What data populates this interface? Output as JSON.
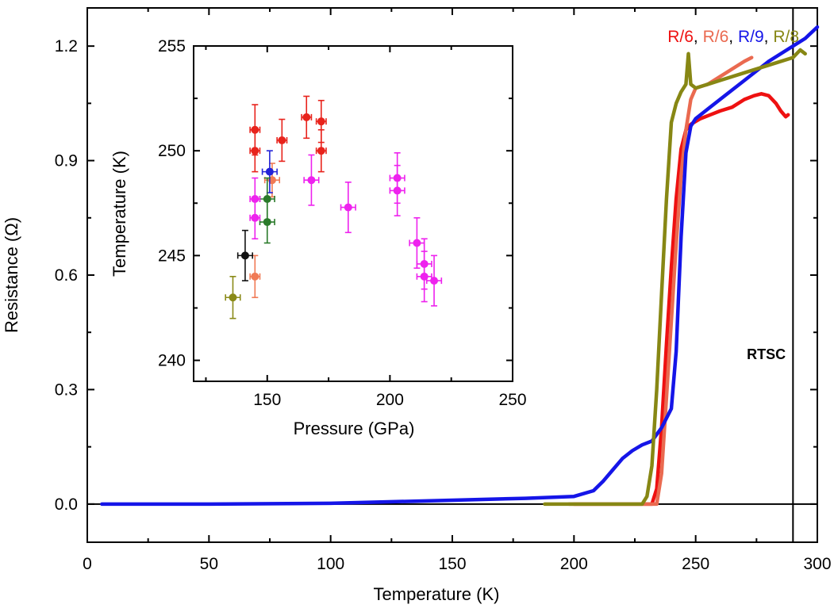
{
  "chart_data": [
    {
      "type": "line",
      "xlabel": "Temperature (K)",
      "ylabel": "Resistance (Ω)",
      "xlim": [
        0,
        300
      ],
      "ylim": [
        -0.1,
        1.3
      ],
      "xticks": [
        "0",
        "50",
        "100",
        "150",
        "200",
        "250",
        "300"
      ],
      "yticks": [
        "0.0",
        "0.3",
        "0.6",
        "0.9",
        "1.2"
      ],
      "grid": false,
      "legend_position": "top-right",
      "legend_entries": [
        "R/6",
        "R/6",
        "R/9",
        "R/8"
      ],
      "annotations": [
        {
          "text": "RTSC",
          "x": 279,
          "y": 0.38
        }
      ],
      "reference_lines": {
        "horizontal_y": 0.0,
        "vertical_x": 290
      },
      "series": [
        {
          "name": "R/6",
          "color": "#ee1111",
          "x": [
            200,
            232,
            234,
            236,
            238,
            240,
            242,
            244,
            246,
            248,
            252,
            256,
            260,
            265,
            270,
            274,
            277,
            280,
            283,
            285,
            287,
            288
          ],
          "y": [
            0.0,
            0.0,
            0.04,
            0.2,
            0.42,
            0.62,
            0.8,
            0.93,
            0.98,
            0.995,
            1.01,
            1.02,
            1.03,
            1.04,
            1.06,
            1.07,
            1.075,
            1.07,
            1.05,
            1.03,
            1.015,
            1.02
          ]
        },
        {
          "name": "R/6",
          "color": "#ea6a50",
          "x": [
            198,
            234,
            236,
            238,
            240,
            242,
            244,
            246,
            248,
            250,
            255,
            260,
            265,
            270,
            273
          ],
          "y": [
            0.0,
            0.0,
            0.08,
            0.28,
            0.48,
            0.68,
            0.86,
            0.98,
            1.06,
            1.09,
            1.1,
            1.12,
            1.14,
            1.16,
            1.17
          ]
        },
        {
          "name": "R/9",
          "color": "#1515e8",
          "x": [
            6,
            50,
            100,
            150,
            180,
            200,
            208,
            212,
            216,
            220,
            224,
            228,
            232,
            236,
            240,
            242,
            244,
            246,
            248,
            250,
            260,
            270,
            280,
            290,
            295,
            300
          ],
          "y": [
            0.0,
            0.0,
            0.002,
            0.01,
            0.015,
            0.02,
            0.035,
            0.06,
            0.09,
            0.12,
            0.14,
            0.155,
            0.165,
            0.2,
            0.25,
            0.4,
            0.7,
            0.92,
            0.99,
            1.01,
            1.06,
            1.11,
            1.16,
            1.2,
            1.22,
            1.25
          ]
        },
        {
          "name": "R/8",
          "color": "#878714",
          "x": [
            188,
            228,
            230,
            232,
            234,
            236,
            238,
            240,
            242,
            244,
            246,
            247,
            248,
            250,
            255,
            260,
            270,
            280,
            290,
            293,
            295
          ],
          "y": [
            0.0,
            0.0,
            0.02,
            0.1,
            0.3,
            0.55,
            0.8,
            1.0,
            1.05,
            1.08,
            1.1,
            1.18,
            1.1,
            1.09,
            1.1,
            1.11,
            1.13,
            1.15,
            1.17,
            1.19,
            1.18
          ]
        }
      ]
    },
    {
      "type": "scatter",
      "xlabel": "Pressure (GPa)",
      "ylabel": "Temperature (K)",
      "xlim": [
        120,
        250
      ],
      "ylim": [
        239,
        255
      ],
      "xticks": [
        "150",
        "200",
        "250"
      ],
      "yticks": [
        "240",
        "245",
        "250",
        "255"
      ],
      "grid": false,
      "points": [
        {
          "x": 145,
          "y": 251.0,
          "xerr": 2,
          "yerr": 1.2,
          "color": "#e8231c"
        },
        {
          "x": 145,
          "y": 250.0,
          "xerr": 2,
          "yerr": 1.0,
          "color": "#e8231c"
        },
        {
          "x": 156,
          "y": 250.5,
          "xerr": 2,
          "yerr": 1.0,
          "color": "#e8231c"
        },
        {
          "x": 166,
          "y": 251.6,
          "xerr": 2,
          "yerr": 1.0,
          "color": "#e8231c"
        },
        {
          "x": 172,
          "y": 251.4,
          "xerr": 2,
          "yerr": 1.0,
          "color": "#e8231c"
        },
        {
          "x": 172,
          "y": 250.0,
          "xerr": 2,
          "yerr": 1.0,
          "color": "#e8231c"
        },
        {
          "x": 152,
          "y": 248.6,
          "xerr": 3,
          "yerr": 0.8,
          "color": "#f07a55"
        },
        {
          "x": 145,
          "y": 244.0,
          "xerr": 2,
          "yerr": 1.0,
          "color": "#f07a55"
        },
        {
          "x": 151,
          "y": 249.0,
          "xerr": 3,
          "yerr": 1.0,
          "color": "#2222d8"
        },
        {
          "x": 150,
          "y": 247.7,
          "xerr": 3,
          "yerr": 1.0,
          "color": "#2a7a2a"
        },
        {
          "x": 150,
          "y": 246.6,
          "xerr": 3,
          "yerr": 1.0,
          "color": "#2a7a2a"
        },
        {
          "x": 141,
          "y": 245.0,
          "xerr": 3,
          "yerr": 1.2,
          "color": "#111111"
        },
        {
          "x": 136,
          "y": 243.0,
          "xerr": 3,
          "yerr": 1.0,
          "color": "#8a8a18"
        },
        {
          "x": 145,
          "y": 247.7,
          "xerr": 2,
          "yerr": 1.0,
          "color": "#ee22ee"
        },
        {
          "x": 145,
          "y": 246.8,
          "xerr": 2,
          "yerr": 1.0,
          "color": "#ee22ee"
        },
        {
          "x": 168,
          "y": 248.6,
          "xerr": 3,
          "yerr": 1.2,
          "color": "#ee22ee"
        },
        {
          "x": 183,
          "y": 247.3,
          "xerr": 3,
          "yerr": 1.2,
          "color": "#ee22ee"
        },
        {
          "x": 203,
          "y": 248.7,
          "xerr": 3,
          "yerr": 1.2,
          "color": "#ee22ee"
        },
        {
          "x": 203,
          "y": 248.1,
          "xerr": 3,
          "yerr": 1.2,
          "color": "#ee22ee"
        },
        {
          "x": 211,
          "y": 245.6,
          "xerr": 3,
          "yerr": 1.2,
          "color": "#ee22ee"
        },
        {
          "x": 214,
          "y": 244.6,
          "xerr": 3,
          "yerr": 1.2,
          "color": "#ee22ee"
        },
        {
          "x": 214,
          "y": 244.0,
          "xerr": 3,
          "yerr": 1.2,
          "color": "#ee22ee"
        },
        {
          "x": 218,
          "y": 243.8,
          "xerr": 3,
          "yerr": 1.2,
          "color": "#ee22ee"
        }
      ]
    }
  ]
}
